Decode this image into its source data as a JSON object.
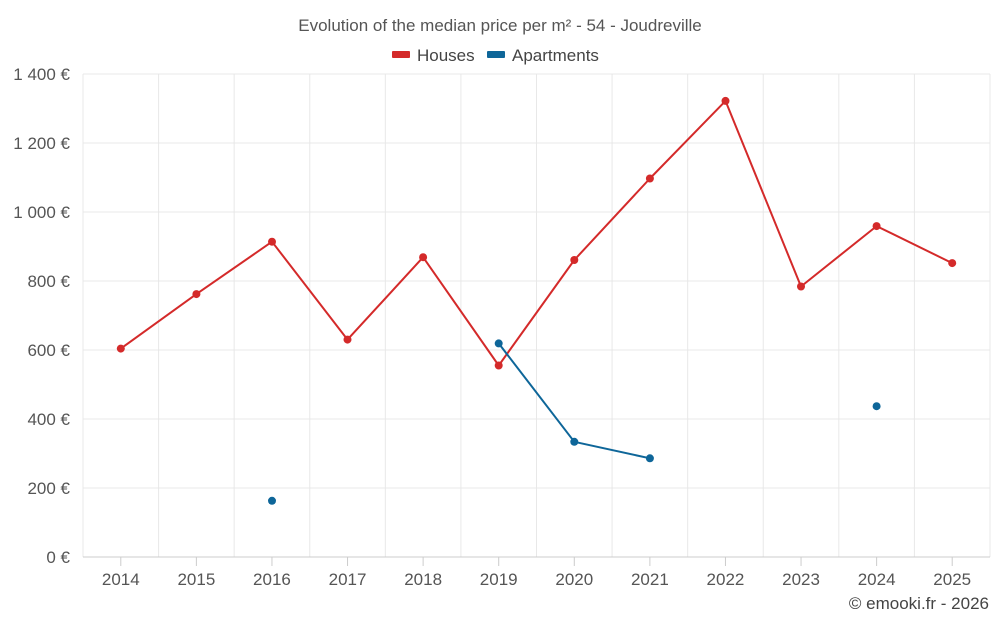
{
  "chart_data": {
    "type": "line",
    "title": "Evolution of the median price per m² - 54 - Joudreville",
    "categories": [
      "2014",
      "2015",
      "2016",
      "2017",
      "2018",
      "2019",
      "2020",
      "2021",
      "2022",
      "2023",
      "2024",
      "2025"
    ],
    "series": [
      {
        "name": "Houses",
        "color": "#d42a2a",
        "values": [
          604,
          762,
          914,
          630,
          869,
          555,
          861,
          1097,
          1322,
          784,
          959,
          852
        ]
      },
      {
        "name": "Apartments",
        "color": "#0e6699",
        "values": [
          null,
          null,
          163,
          null,
          null,
          619,
          334,
          286,
          null,
          null,
          437,
          null
        ]
      }
    ],
    "ylim": [
      0,
      1400
    ],
    "y_ticks": [
      {
        "value": 0,
        "label": "0 €"
      },
      {
        "value": 200,
        "label": "200 €"
      },
      {
        "value": 400,
        "label": "400 €"
      },
      {
        "value": 600,
        "label": "600 €"
      },
      {
        "value": 800,
        "label": "800 €"
      },
      {
        "value": 1000,
        "label": "1 000 €"
      },
      {
        "value": 1200,
        "label": "1 200 €"
      },
      {
        "value": 1400,
        "label": "1 400 €"
      }
    ],
    "grid": true,
    "legend_position": "top-center",
    "credit": "© emooki.fr - 2026"
  }
}
